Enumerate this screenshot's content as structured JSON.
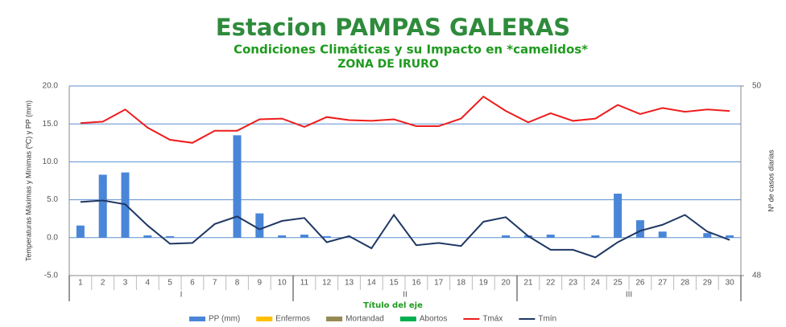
{
  "chart_data": {
    "type": "bar-line",
    "title": "Estacion PAMPAS GALERAS",
    "subtitle": "Condiciones Climáticas y su Impacto en *camelidos*",
    "subtitle2": "ZONA DE IRURO",
    "x_label": "Título del eje",
    "y_label": "Temperaturas Máximas y Mínimas (ºC) y PP (mm)",
    "y2_label": "Nº de casos diarias",
    "categories": [
      "1",
      "2",
      "3",
      "4",
      "5",
      "6",
      "7",
      "8",
      "9",
      "10",
      "11",
      "12",
      "13",
      "14",
      "15",
      "16",
      "17",
      "18",
      "19",
      "20",
      "21",
      "22",
      "23",
      "24",
      "25",
      "26",
      "27",
      "28",
      "29",
      "30"
    ],
    "groups": [
      "I",
      "II",
      "III"
    ],
    "ylim": [
      -5,
      20
    ],
    "yticks": [
      {
        "value": -5,
        "label": "-5.0"
      },
      {
        "value": 0,
        "label": "0.0"
      },
      {
        "value": 5,
        "label": "5.0"
      },
      {
        "value": 10,
        "label": "10.0"
      },
      {
        "value": 15,
        "label": "15.0"
      },
      {
        "value": 20,
        "label": "20.0"
      }
    ],
    "y2lim": [
      48,
      50
    ],
    "y2ticks": [
      48,
      50
    ],
    "grid": true,
    "series": [
      {
        "name": "PP (mm)",
        "kind": "bar",
        "color": "#4a86d8",
        "values": [
          1.6,
          8.3,
          8.6,
          0.3,
          0.2,
          0,
          0,
          13.5,
          3.2,
          0.3,
          0.4,
          0.2,
          0,
          0,
          0,
          0,
          0,
          0,
          0,
          0.3,
          0.3,
          0.4,
          0,
          0.3,
          5.8,
          2.3,
          0.8,
          0,
          0.6,
          0.3
        ]
      },
      {
        "name": "Enfermos",
        "kind": "bar",
        "axis": "y2",
        "color": "#ffc000",
        "values": [
          null,
          null,
          null,
          null,
          null,
          null,
          null,
          null,
          null,
          null,
          null,
          null,
          null,
          null,
          null,
          null,
          null,
          null,
          null,
          null,
          null,
          null,
          null,
          null,
          null,
          null,
          null,
          null,
          null,
          null
        ]
      },
      {
        "name": "Mortandad",
        "kind": "bar",
        "axis": "y2",
        "color": "#948a54",
        "values": [
          null,
          null,
          null,
          null,
          null,
          null,
          null,
          null,
          null,
          null,
          null,
          null,
          null,
          null,
          null,
          null,
          null,
          null,
          null,
          null,
          null,
          null,
          null,
          null,
          null,
          null,
          null,
          null,
          null,
          null
        ]
      },
      {
        "name": "Abortos",
        "kind": "bar",
        "axis": "y2",
        "color": "#00b050",
        "values": [
          null,
          null,
          null,
          null,
          null,
          null,
          null,
          null,
          null,
          null,
          null,
          null,
          null,
          null,
          null,
          null,
          null,
          null,
          null,
          null,
          null,
          null,
          null,
          null,
          null,
          null,
          null,
          null,
          null,
          null
        ]
      },
      {
        "name": "Tmáx",
        "kind": "line",
        "color": "#ee1c1c",
        "values": [
          15.1,
          15.3,
          16.9,
          14.5,
          12.9,
          12.5,
          14.1,
          14.1,
          15.6,
          15.7,
          14.6,
          15.9,
          15.5,
          15.4,
          15.6,
          14.7,
          14.7,
          15.7,
          18.6,
          16.7,
          15.2,
          16.4,
          15.4,
          15.7,
          17.5,
          16.3,
          17.1,
          16.6,
          16.9,
          16.7
        ]
      },
      {
        "name": "Tmín",
        "kind": "line",
        "color": "#1f3864",
        "values": [
          4.7,
          4.9,
          4.4,
          1.6,
          -0.8,
          -0.7,
          1.8,
          2.8,
          1.1,
          2.2,
          2.6,
          -0.6,
          0.2,
          -1.4,
          3.0,
          -1.0,
          -0.7,
          -1.1,
          2.1,
          2.7,
          0.2,
          -1.6,
          -1.6,
          -2.6,
          -0.6,
          0.9,
          1.7,
          3.0,
          0.8,
          -0.3
        ]
      }
    ]
  }
}
